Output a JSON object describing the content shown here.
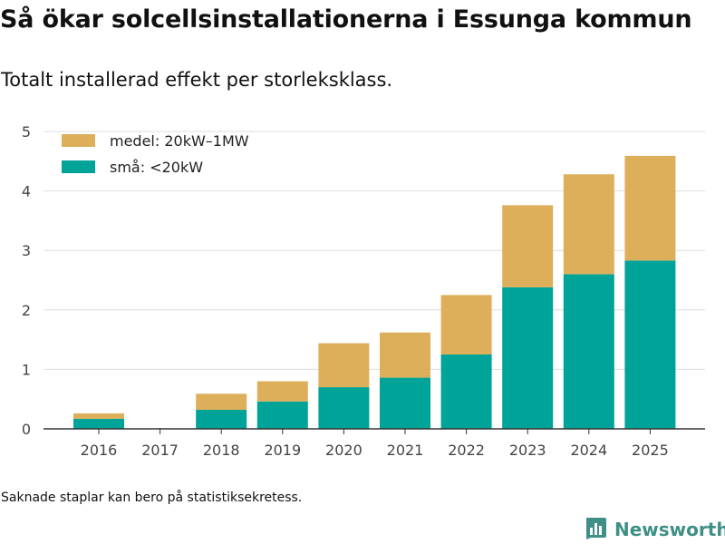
{
  "title": "Så ökar solcellsinstallationerna i Essunga kommun",
  "subtitle": "Totalt installerad effekt per storleksklass.",
  "footnote": "Saknade staplar kan bero på statistiksekretess.",
  "brand": {
    "name": "Newsworthy",
    "logo_icon": "bar-chart-logo-icon",
    "color": "#3f8f87"
  },
  "colors": {
    "small": "#00a397",
    "medium": "#ddaf5a",
    "grid": "#dddddd",
    "axis": "#333333"
  },
  "chart_data": {
    "type": "bar",
    "stacked": true,
    "title": "Så ökar solcellsinstallationerna i Essunga kommun",
    "subtitle": "Totalt installerad effekt per storleksklass.",
    "xlabel": "",
    "ylabel": "",
    "ylim": [
      0,
      5
    ],
    "yticks": [
      "0",
      "1",
      "2",
      "3",
      "4",
      "5"
    ],
    "grid": true,
    "legend_position": "top-left",
    "categories": [
      "2016",
      "2017",
      "2018",
      "2019",
      "2020",
      "2021",
      "2022",
      "2023",
      "2024",
      "2025"
    ],
    "series": [
      {
        "name": "små: <20kW",
        "color": "#00a397",
        "values": [
          0.17,
          0,
          0.32,
          0.46,
          0.7,
          0.86,
          1.25,
          2.38,
          2.6,
          2.83
        ]
      },
      {
        "name": "medel: 20kW–1MW",
        "color": "#ddaf5a",
        "values": [
          0.09,
          0,
          0.27,
          0.34,
          0.74,
          0.76,
          1.0,
          1.38,
          1.68,
          1.76
        ]
      }
    ]
  }
}
